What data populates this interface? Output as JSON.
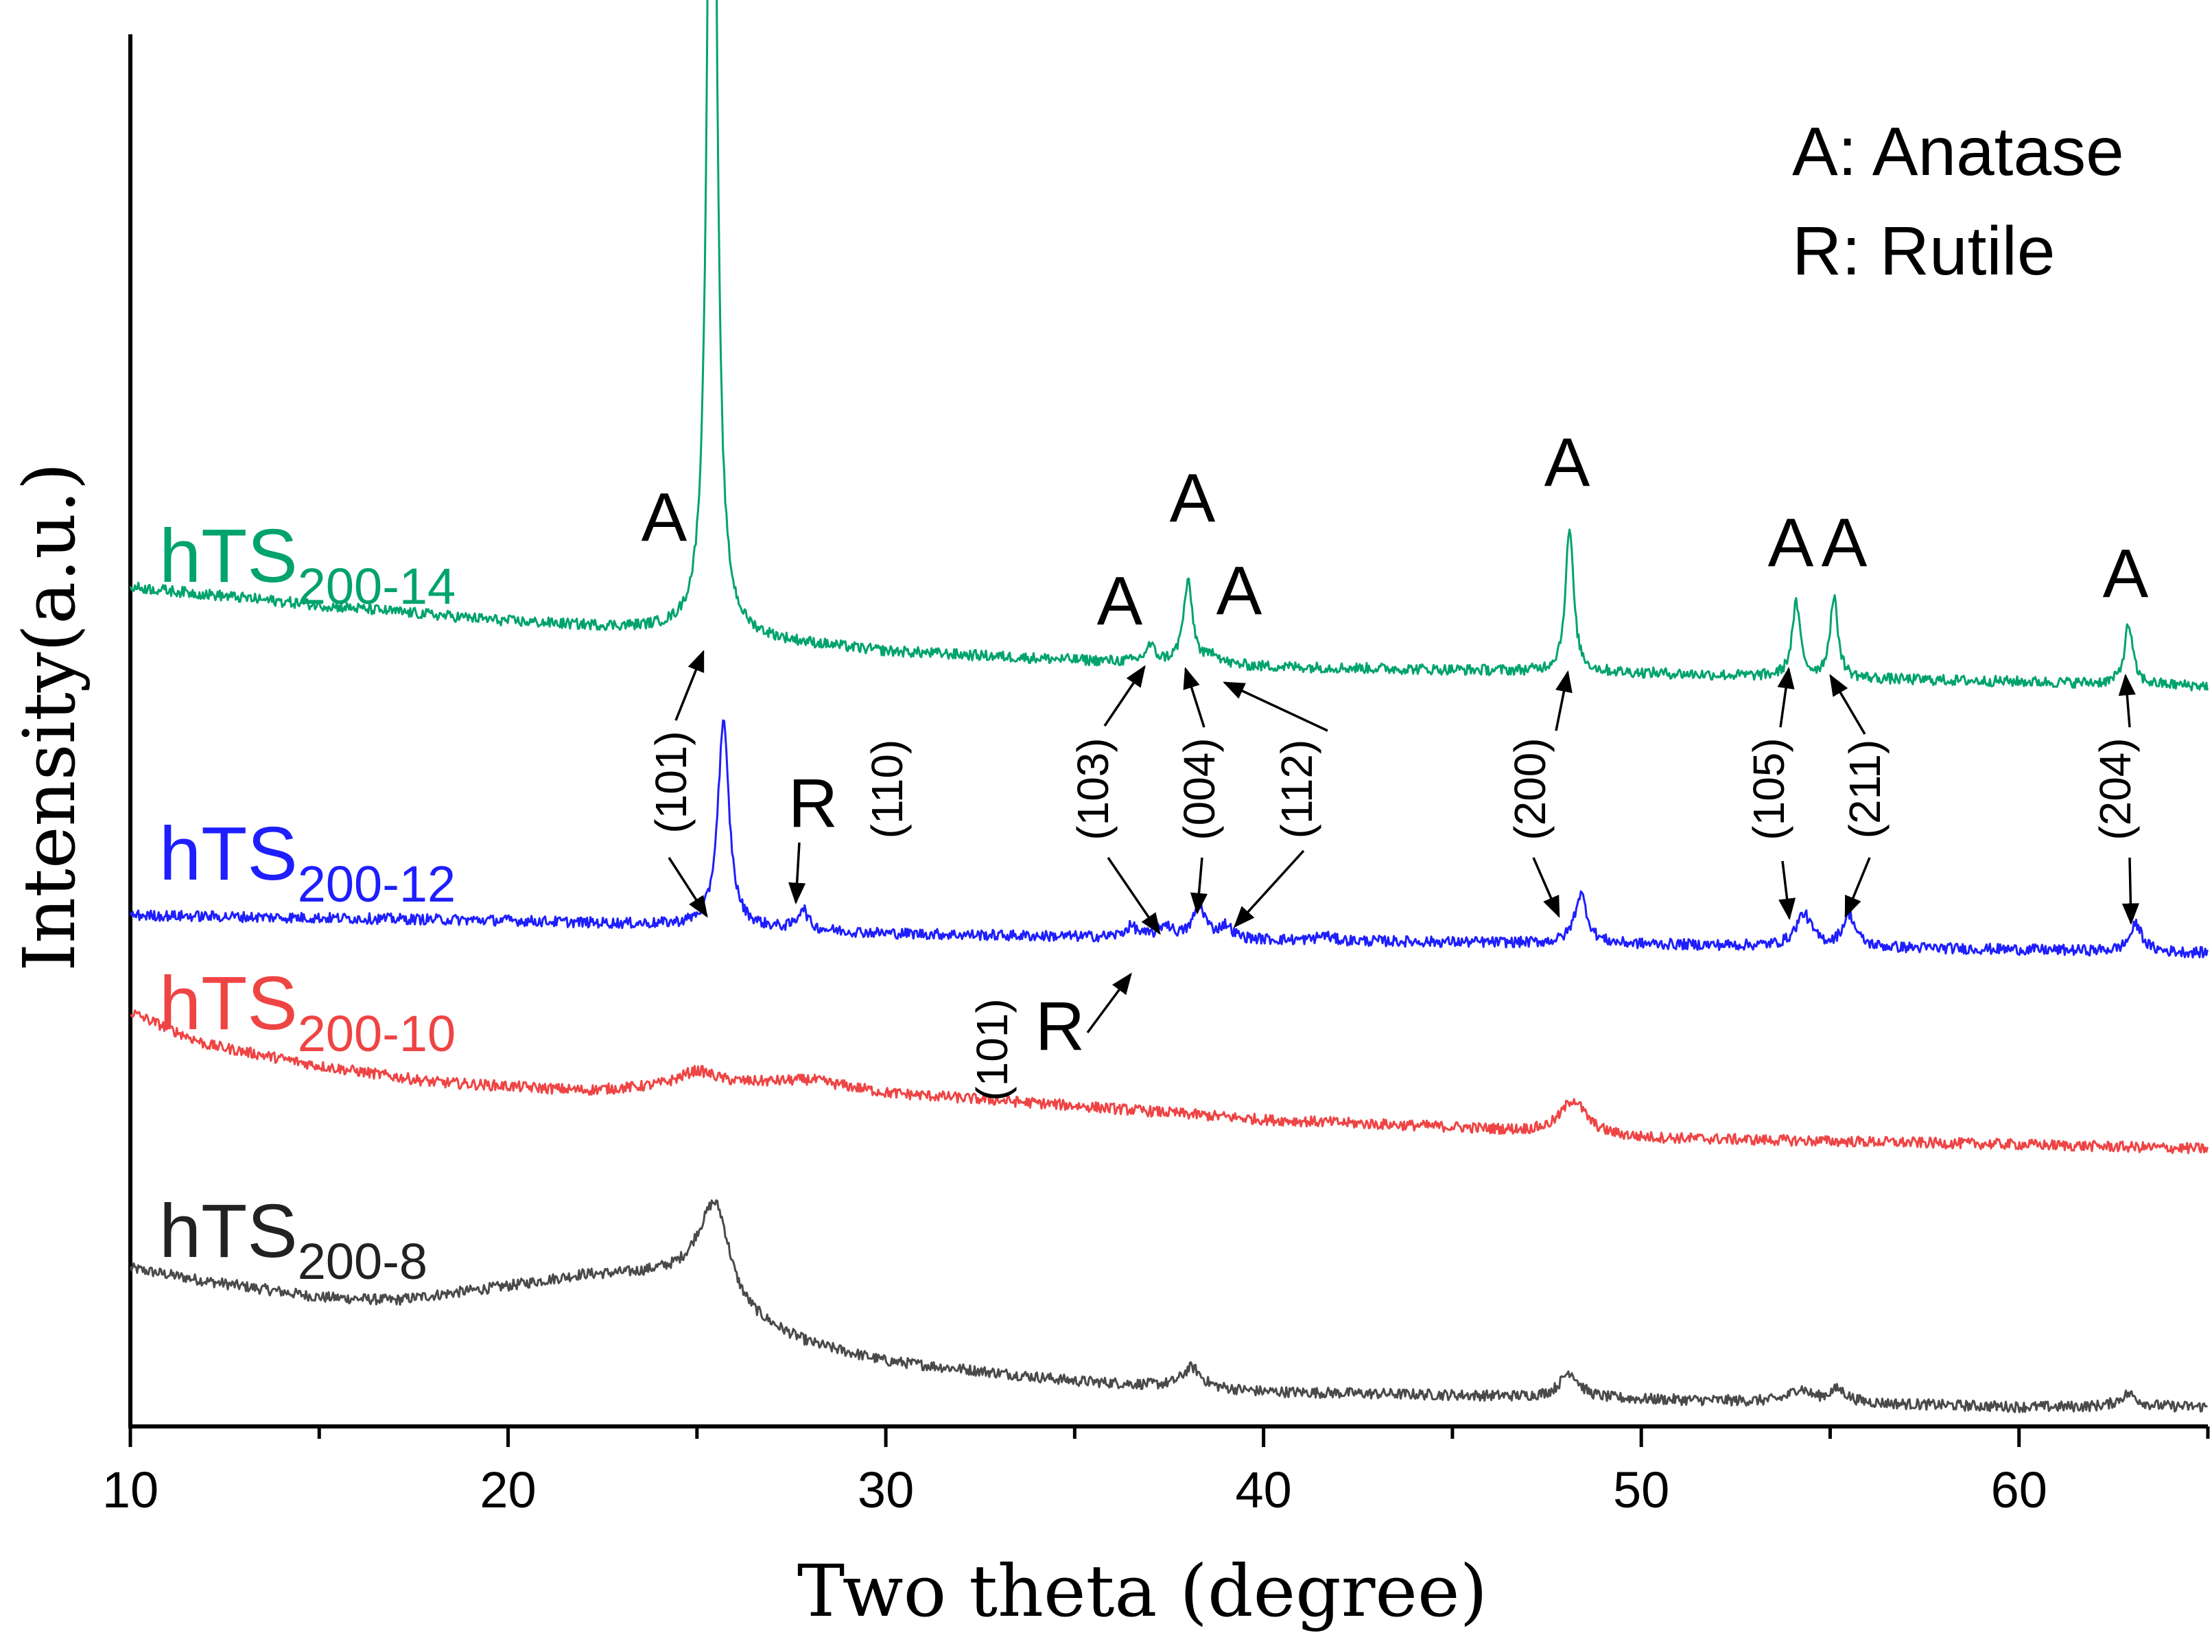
{
  "chart_data": {
    "type": "line",
    "title": "",
    "xlabel": "Two theta (degree)",
    "ylabel": "Intensity(a.u.)",
    "xlim": [
      10,
      65
    ],
    "ylim": [
      0,
      1.3
    ],
    "xticks": [
      10,
      20,
      30,
      40,
      50,
      60
    ],
    "series": [
      {
        "key": "s8",
        "name": "hTS",
        "sub": "200-8",
        "color": "#4a4a4a",
        "baseline": [
          [
            10,
            0.147
          ],
          [
            12,
            0.135
          ],
          [
            15,
            0.12
          ],
          [
            17,
            0.117
          ],
          [
            20,
            0.13
          ],
          [
            22,
            0.14
          ],
          [
            24,
            0.14
          ],
          [
            25,
            0.135
          ],
          [
            26,
            0.1
          ],
          [
            28,
            0.075
          ],
          [
            30,
            0.06
          ],
          [
            35,
            0.042
          ],
          [
            40,
            0.032
          ],
          [
            45,
            0.029
          ],
          [
            50,
            0.025
          ],
          [
            55,
            0.022
          ],
          [
            60,
            0.018
          ],
          [
            65,
            0.018
          ]
        ],
        "peaks": [
          {
            "x": 25.5,
            "h": 0.09,
            "w": 0.5
          },
          {
            "x": 38.1,
            "h": 0.019,
            "w": 0.3
          },
          {
            "x": 48.1,
            "h": 0.024,
            "w": 0.3
          },
          {
            "x": 54.2,
            "h": 0.012,
            "w": 0.3
          },
          {
            "x": 55.2,
            "h": 0.012,
            "w": 0.3
          },
          {
            "x": 62.9,
            "h": 0.012,
            "w": 0.3
          }
        ]
      },
      {
        "key": "s10",
        "name": "hTS",
        "sub": "200-10",
        "color": "#ef4444",
        "baseline": [
          [
            10,
            0.385
          ],
          [
            12,
            0.355
          ],
          [
            15,
            0.335
          ],
          [
            18,
            0.32
          ],
          [
            22,
            0.312
          ],
          [
            26,
            0.318
          ],
          [
            28,
            0.322
          ],
          [
            30,
            0.31
          ],
          [
            35,
            0.298
          ],
          [
            40,
            0.285
          ],
          [
            45,
            0.278
          ],
          [
            50,
            0.268
          ],
          [
            55,
            0.265
          ],
          [
            60,
            0.262
          ],
          [
            65,
            0.258
          ]
        ],
        "peaks": [
          {
            "x": 25.0,
            "h": 0.014,
            "w": 0.6
          },
          {
            "x": 48.2,
            "h": 0.032,
            "w": 0.4
          }
        ]
      },
      {
        "key": "s12",
        "name": "hTS",
        "sub": "200-12",
        "color": "#1e1eff",
        "baseline": [
          [
            10,
            0.475
          ],
          [
            20,
            0.47
          ],
          [
            25,
            0.465
          ],
          [
            30,
            0.458
          ],
          [
            40,
            0.452
          ],
          [
            50,
            0.448
          ],
          [
            60,
            0.443
          ],
          [
            65,
            0.44
          ]
        ],
        "peaks": [
          {
            "x": 25.7,
            "h": 0.19,
            "w": 0.18
          },
          {
            "x": 27.8,
            "h": 0.02,
            "w": 0.15
          },
          {
            "x": 36.5,
            "h": 0.01,
            "w": 0.2
          },
          {
            "x": 37.4,
            "h": 0.012,
            "w": 0.2
          },
          {
            "x": 38.3,
            "h": 0.03,
            "w": 0.2
          },
          {
            "x": 39.0,
            "h": 0.012,
            "w": 0.2
          },
          {
            "x": 41.6,
            "h": 0.005,
            "w": 0.2
          },
          {
            "x": 48.4,
            "h": 0.046,
            "w": 0.2
          },
          {
            "x": 54.3,
            "h": 0.03,
            "w": 0.25
          },
          {
            "x": 55.5,
            "h": 0.03,
            "w": 0.2
          },
          {
            "x": 63.1,
            "h": 0.025,
            "w": 0.2
          }
        ]
      },
      {
        "key": "s14",
        "name": "hTS",
        "sub": "200-14",
        "color": "#00a36c",
        "baseline": [
          [
            10,
            0.78
          ],
          [
            15,
            0.763
          ],
          [
            20,
            0.748
          ],
          [
            24,
            0.74
          ],
          [
            27,
            0.73
          ],
          [
            30,
            0.72
          ],
          [
            35,
            0.712
          ],
          [
            40,
            0.706
          ],
          [
            45,
            0.703
          ],
          [
            50,
            0.7
          ],
          [
            55,
            0.695
          ],
          [
            60,
            0.692
          ],
          [
            65,
            0.688
          ]
        ],
        "peaks": [
          {
            "x": 25.4,
            "h": 1.21,
            "w": 0.12
          },
          {
            "x": 37.0,
            "h": 0.015,
            "w": 0.15
          },
          {
            "x": 38.0,
            "h": 0.075,
            "w": 0.15
          },
          {
            "x": 38.7,
            "h": 0.01,
            "w": 0.15
          },
          {
            "x": 48.1,
            "h": 0.133,
            "w": 0.13
          },
          {
            "x": 54.1,
            "h": 0.068,
            "w": 0.13
          },
          {
            "x": 55.1,
            "h": 0.074,
            "w": 0.13
          },
          {
            "x": 62.9,
            "h": 0.056,
            "w": 0.13
          }
        ]
      }
    ],
    "legend_note": [
      "A: Anatase",
      "R: Rutile"
    ],
    "annotations": {
      "peak_letters": [
        "A",
        "A",
        "A",
        "A",
        "A",
        "A",
        "A",
        "A",
        "R",
        "R"
      ],
      "hkl": [
        "(101)",
        "(110)",
        "(103)",
        "(004)",
        "(112)",
        "(200)",
        "(105)",
        "(211)",
        "(204)",
        "(101)"
      ]
    }
  }
}
